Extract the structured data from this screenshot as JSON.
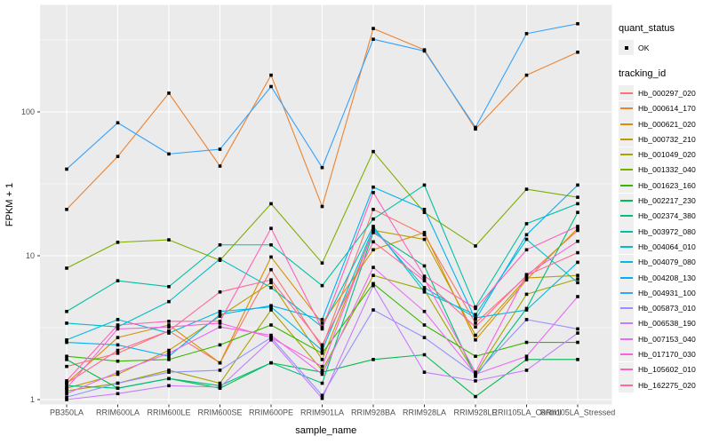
{
  "figure": {
    "background": "#ffffff",
    "panel_background": "#ebebeb",
    "grid_color": "#ffffff",
    "tick_color": "#333333",
    "tick_label_color": "#4d4d4d",
    "axis_title_color": "#000000",
    "point_color": "#000000",
    "legend_key_fill": "#efefef"
  },
  "legend": {
    "quant_title": "quant_status",
    "quant_items": [
      {
        "label": "OK",
        "marker": "black-point"
      }
    ],
    "tracking_title": "tracking_id"
  },
  "chart_data": {
    "type": "line",
    "title": "",
    "xlabel": "sample_name",
    "ylabel": "FPKM + 1",
    "y_scale": "log10",
    "y_major_ticks": [
      1,
      10,
      100
    ],
    "y_minor_ticks": [
      3.1623,
      31.623,
      316.23
    ],
    "ylim_px_calibration": "y = 450 - 162*log10(v)",
    "grid": true,
    "legend_position": "right",
    "point_marker": "black square (quant_status = OK) on every observation",
    "categories": [
      "PB350LA",
      "RRIM600LA",
      "RRIM600LE",
      "RRIM600SE",
      "RRIM600PE",
      "RRIM901LA",
      "RRIM928BA",
      "RRIM928LA",
      "RRIM928LE",
      "RRII105LA_Control",
      "RRII105LA_Stressed"
    ],
    "series": [
      {
        "name": "Hb_000297_020",
        "color": "#F8766D",
        "values": [
          1.7,
          2.1,
          3.0,
          1.8,
          8.0,
          2.3,
          21,
          14,
          3.4,
          7.2,
          15
        ]
      },
      {
        "name": "Hb_000614_170",
        "color": "#EA8331",
        "values": [
          21,
          49,
          135,
          42,
          180,
          22,
          380,
          270,
          76,
          180,
          260
        ]
      },
      {
        "name": "Hb_000621_020",
        "color": "#D89000",
        "values": [
          1.3,
          2.7,
          3.3,
          1.8,
          9.8,
          3.4,
          11,
          14.5,
          2.6,
          6.8,
          15.5
        ]
      },
      {
        "name": "Hb_000732_210",
        "color": "#C09B00",
        "values": [
          1.2,
          1.5,
          2.2,
          3.8,
          6.5,
          1.9,
          15,
          13,
          2.8,
          7.0,
          7.3
        ]
      },
      {
        "name": "Hb_001049_020",
        "color": "#A3A500",
        "values": [
          1.15,
          1.3,
          1.6,
          1.3,
          4.2,
          1.6,
          7.3,
          5.8,
          1.5,
          5.4,
          6.9
        ]
      },
      {
        "name": "Hb_001332_040",
        "color": "#7CAE00",
        "values": [
          8.2,
          12.4,
          12.9,
          9.3,
          23,
          8.9,
          53,
          20,
          11.7,
          29,
          25.5
        ]
      },
      {
        "name": "Hb_001623_160",
        "color": "#39B600",
        "values": [
          2.0,
          1.85,
          1.9,
          2.4,
          3.3,
          2.1,
          6.4,
          3.3,
          2.0,
          2.5,
          2.5
        ]
      },
      {
        "name": "Hb_002217_230",
        "color": "#00BB4E",
        "values": [
          1.9,
          1.2,
          1.4,
          1.2,
          1.8,
          1.55,
          1.9,
          2.05,
          1.05,
          1.9,
          1.9
        ]
      },
      {
        "name": "Hb_002374_380",
        "color": "#00BF7D",
        "values": [
          1.25,
          1.2,
          1.4,
          1.25,
          1.8,
          1.3,
          14.5,
          8.5,
          1.45,
          4.3,
          20
        ]
      },
      {
        "name": "Hb_003972_080",
        "color": "#00C1A3",
        "values": [
          4.1,
          6.7,
          6.1,
          11.9,
          11.9,
          6.2,
          18,
          31,
          4.4,
          16.7,
          23
        ]
      },
      {
        "name": "Hb_004064_010",
        "color": "#00BFC4",
        "values": [
          3.4,
          3.2,
          4.8,
          9.5,
          6.0,
          3.2,
          16,
          5.6,
          3.9,
          13,
          6.5
        ]
      },
      {
        "name": "Hb_004079_080",
        "color": "#00BAE0",
        "values": [
          2.6,
          3.6,
          2.9,
          4.1,
          4.4,
          2.2,
          15.5,
          6.0,
          3.7,
          4.2,
          9.0
        ]
      },
      {
        "name": "Hb_004208_130",
        "color": "#00B0F6",
        "values": [
          2.5,
          2.4,
          2.0,
          3.9,
          4.5,
          3.6,
          30,
          21,
          3.6,
          14,
          31
        ]
      },
      {
        "name": "Hb_004931_100",
        "color": "#35A2FF",
        "values": [
          40,
          84,
          51,
          55,
          150,
          41,
          320,
          265,
          78,
          350,
          410
        ]
      },
      {
        "name": "Hb_005873_010",
        "color": "#9590FF",
        "values": [
          1.04,
          1.3,
          1.55,
          1.6,
          2.7,
          1.07,
          4.2,
          2.7,
          1.5,
          3.6,
          3.1
        ]
      },
      {
        "name": "Hb_006538_190",
        "color": "#C77CFF",
        "values": [
          1.0,
          1.1,
          1.25,
          1.22,
          2.6,
          1.02,
          6.2,
          1.55,
          1.35,
          1.6,
          2.9
        ]
      },
      {
        "name": "Hb_007153_040",
        "color": "#E76BF3",
        "values": [
          1.1,
          1.55,
          2.1,
          3.2,
          2.8,
          1.5,
          8.3,
          4.1,
          1.5,
          2.0,
          5.2
        ]
      },
      {
        "name": "Hb_017170_030",
        "color": "#FA62DB",
        "values": [
          1.2,
          3.1,
          3.2,
          3.4,
          2.7,
          1.7,
          15,
          6.9,
          1.55,
          7.4,
          12.6
        ]
      },
      {
        "name": "Hb_105602_010",
        "color": "#FF62BC",
        "values": [
          1.35,
          3.3,
          3.5,
          3.5,
          15.5,
          3.1,
          27.5,
          7.2,
          4.3,
          11,
          16
        ]
      },
      {
        "name": "Hb_162275_020",
        "color": "#FF6A98",
        "values": [
          1.3,
          2.2,
          3.0,
          5.6,
          6.8,
          2.4,
          12.5,
          6.7,
          3.2,
          7.3,
          10.5
        ]
      }
    ]
  }
}
